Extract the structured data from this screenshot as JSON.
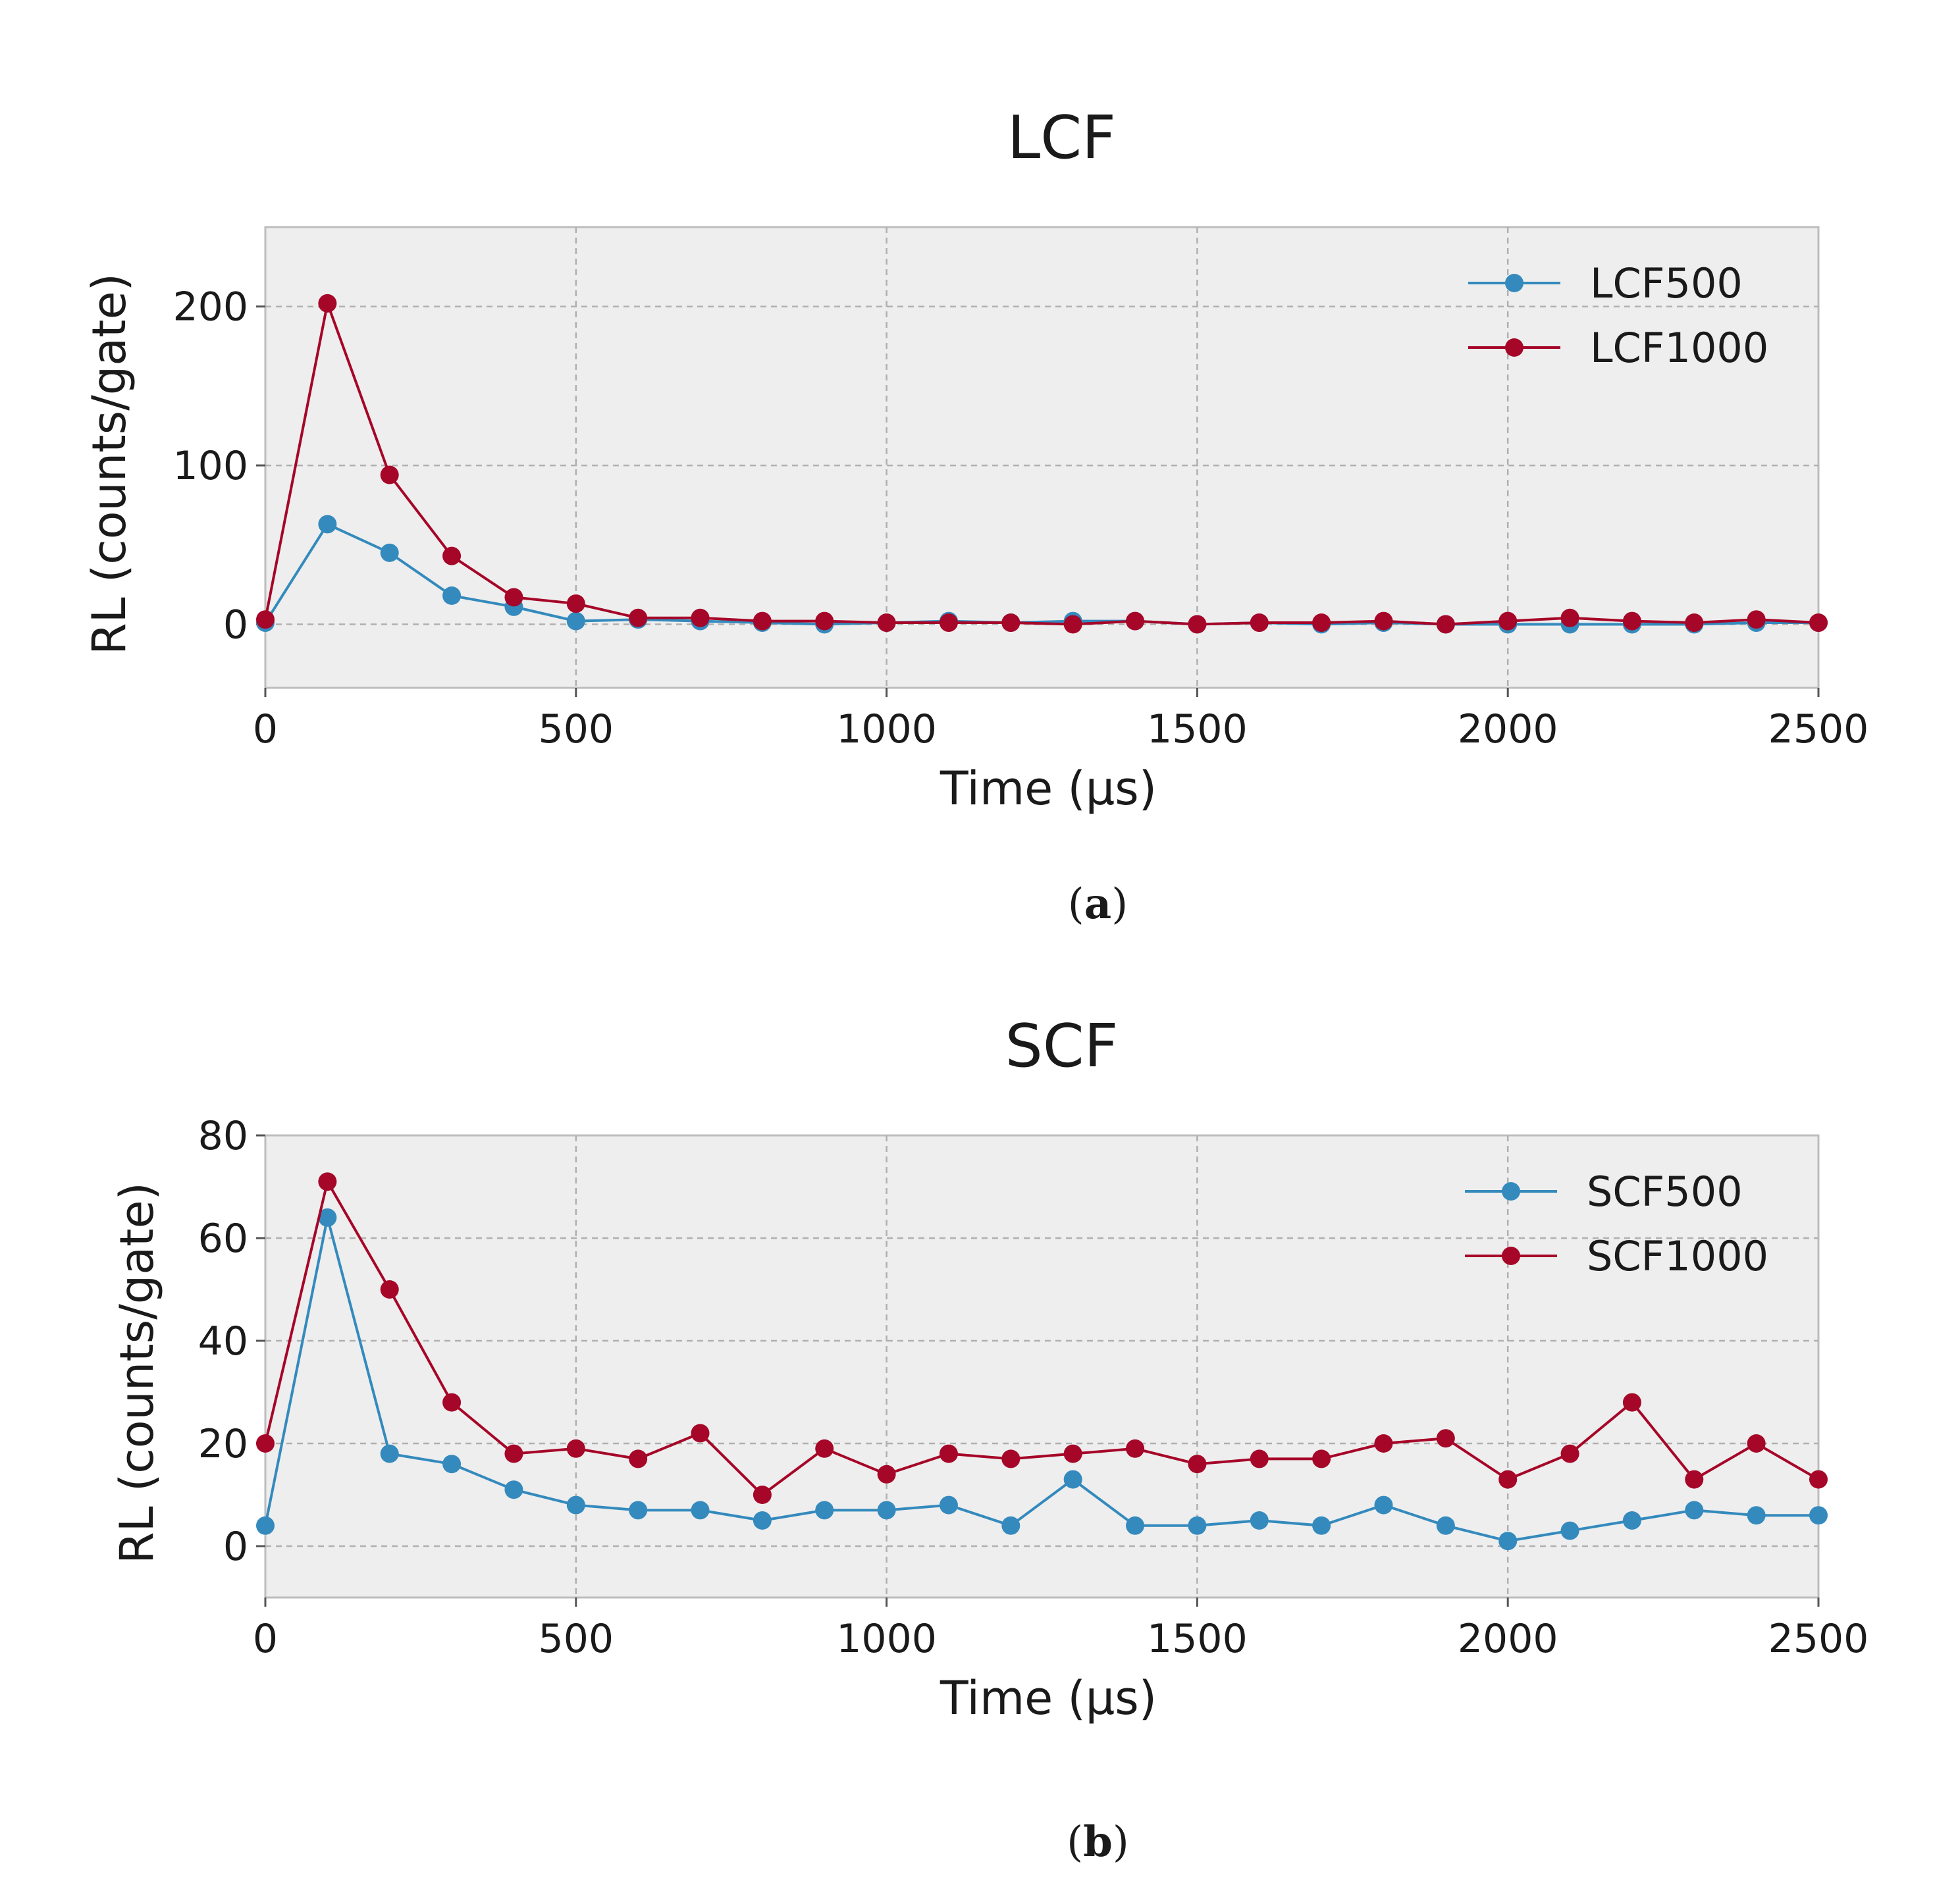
{
  "colors": {
    "series_blue": "#348abd",
    "series_red": "#a60628",
    "panel_bg": "#eeeeee"
  },
  "chart_data": [
    {
      "type": "line",
      "title": "LCF",
      "xlabel": "Time (µs)",
      "ylabel": "RL (counts/gate)",
      "xlim": [
        0,
        2500
      ],
      "ylim": [
        -40,
        250
      ],
      "xticks": [
        0,
        500,
        1000,
        1500,
        2000,
        2500
      ],
      "yticks": [
        0,
        100,
        200
      ],
      "caption": "a",
      "x": [
        0,
        100,
        200,
        300,
        400,
        500,
        600,
        700,
        800,
        900,
        1000,
        1100,
        1200,
        1300,
        1400,
        1500,
        1600,
        1700,
        1800,
        1900,
        2000,
        2100,
        2200,
        2300,
        2400,
        2500
      ],
      "series": [
        {
          "name": "LCF500",
          "color": "#348abd",
          "values": [
            1,
            63,
            45,
            18,
            11,
            2,
            3,
            2,
            1,
            0,
            1,
            2,
            1,
            2,
            2,
            0,
            1,
            0,
            1,
            0,
            0,
            0,
            0,
            0,
            1,
            1
          ]
        },
        {
          "name": "LCF1000",
          "color": "#a60628",
          "values": [
            3,
            202,
            94,
            43,
            17,
            13,
            4,
            4,
            2,
            2,
            1,
            1,
            1,
            0,
            2,
            0,
            1,
            1,
            2,
            0,
            2,
            4,
            2,
            1,
            3,
            1
          ]
        }
      ]
    },
    {
      "type": "line",
      "title": "SCF",
      "xlabel": "Time (µs)",
      "ylabel": "RL (counts/gate)",
      "xlim": [
        0,
        2500
      ],
      "ylim": [
        -10,
        80
      ],
      "xticks": [
        0,
        500,
        1000,
        1500,
        2000,
        2500
      ],
      "yticks": [
        0,
        20,
        40,
        60,
        80
      ],
      "caption": "b",
      "x": [
        0,
        100,
        200,
        300,
        400,
        500,
        600,
        700,
        800,
        900,
        1000,
        1100,
        1200,
        1300,
        1400,
        1500,
        1600,
        1700,
        1800,
        1900,
        2000,
        2100,
        2200,
        2300,
        2400,
        2500
      ],
      "series": [
        {
          "name": "SCF500",
          "color": "#348abd",
          "values": [
            4,
            64,
            18,
            16,
            11,
            8,
            7,
            7,
            5,
            7,
            7,
            8,
            4,
            13,
            4,
            4,
            5,
            4,
            8,
            4,
            1,
            3,
            5,
            7,
            6,
            6
          ]
        },
        {
          "name": "SCF1000",
          "color": "#a60628",
          "values": [
            20,
            71,
            50,
            28,
            18,
            19,
            17,
            22,
            10,
            19,
            14,
            18,
            17,
            18,
            19,
            16,
            17,
            17,
            20,
            21,
            13,
            18,
            28,
            13,
            20,
            13
          ]
        }
      ]
    }
  ]
}
